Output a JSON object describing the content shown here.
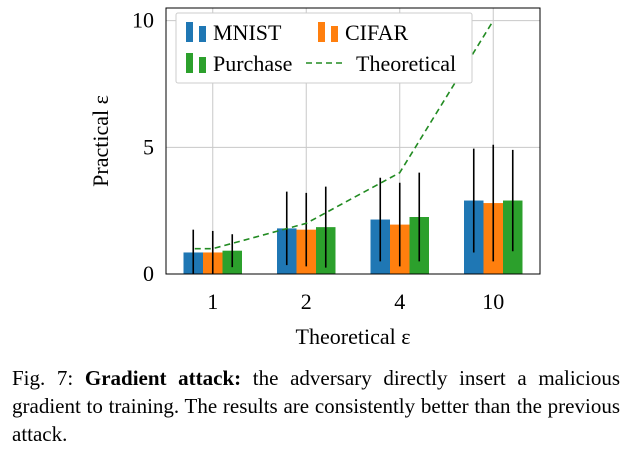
{
  "chart_data": {
    "type": "bar",
    "categories": [
      "1",
      "2",
      "4",
      "10"
    ],
    "series": [
      {
        "name": "MNIST",
        "color": "#1f77b4",
        "values": [
          0.85,
          1.8,
          2.15,
          2.9
        ],
        "err": [
          0.9,
          1.45,
          1.65,
          2.05
        ]
      },
      {
        "name": "CIFAR",
        "color": "#ff7f0e",
        "values": [
          0.85,
          1.75,
          1.95,
          2.8
        ],
        "err": [
          0.85,
          1.45,
          1.65,
          2.3
        ]
      },
      {
        "name": "Purchase",
        "color": "#2ca02c",
        "values": [
          0.92,
          1.85,
          2.25,
          2.9
        ],
        "err": [
          0.65,
          1.6,
          1.75,
          2.0
        ]
      }
    ],
    "theoretical": {
      "name": "Theoretical",
      "color": "#228b22",
      "values": [
        1,
        2,
        4,
        10
      ]
    },
    "xlabel": "Theoretical ε",
    "ylabel": "Practical ε",
    "yticks": [
      "0",
      "5",
      "10"
    ],
    "ylim": [
      0,
      10.5
    ],
    "grid": true,
    "legend": "top"
  },
  "caption": {
    "prefix": "Fig. 7: ",
    "bold": "Gradient attack:",
    "text": " the adversary directly insert a malicious gradient to training. The results are consistently better than the previous attack."
  }
}
